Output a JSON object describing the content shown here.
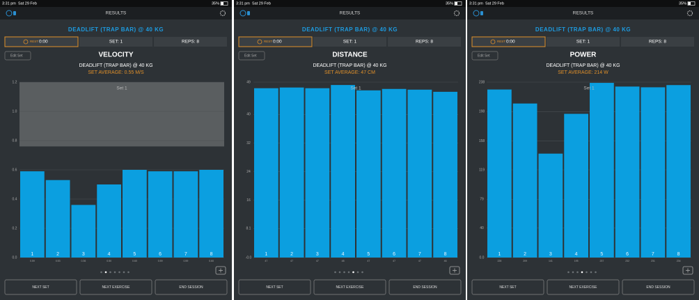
{
  "panels": [
    {
      "time": "3:31 pm",
      "date": "Sat 29 Feb",
      "battery": "35%",
      "nav_title": "RESULTS",
      "exercise": "DEADLIFT (TRAP BAR) @ 40 KG",
      "rest_label": "REST",
      "rest_time": "0:00",
      "set": "SET: 1",
      "reps": "REPS: 8",
      "edit": "Edit Set",
      "chart": {
        "type": "bar",
        "title": "VELOCITY",
        "subtitle": "DEADLIFT (TRAP BAR) @ 40 KG",
        "average": "SET AVERAGE: 0.55 M/S",
        "series_label": "Set 1",
        "categories": [
          "1",
          "2",
          "3",
          "4",
          "5",
          "6",
          "7",
          "8"
        ],
        "values": [
          0.59,
          0.53,
          0.36,
          0.5,
          0.6,
          0.59,
          0.59,
          0.6
        ],
        "value_labels": [
          "0.59",
          "0.53",
          "0.36",
          "0.50",
          "0.60",
          "0.59",
          "0.59",
          "0.60"
        ],
        "color": "#0b9fe0",
        "highlight_range": [
          0.76,
          1.2
        ],
        "ylim": [
          0,
          1.2
        ],
        "yticks": [
          {
            "value": 0,
            "label": "0.0"
          },
          0.2,
          0.4,
          0.6,
          0.8,
          {
            "value": 1,
            "label": "1.0"
          },
          1.2
        ]
      },
      "buttons": [
        "NEXT SET",
        "NEXT EXERCISE",
        "END SESSION"
      ]
    },
    {
      "time": "3:31 pm",
      "date": "Sat 29 Feb",
      "battery": "35%",
      "nav_title": "RESULTS",
      "exercise": "DEADLIFT (TRAP BAR) @ 40 KG",
      "rest_label": "REST",
      "rest_time": "0:00",
      "set": "SET: 1",
      "reps": "REPS: 8",
      "edit": "Edit Set",
      "chart": {
        "type": "bar",
        "title": "DISTANCE",
        "subtitle": "DEADLIFT (TRAP BAR) @ 40 KG",
        "average": "SET AVERAGE: 47 CM",
        "series_label": "Set 1",
        "categories": [
          "1",
          "2",
          "3",
          "4",
          "5",
          "6",
          "7",
          "8"
        ],
        "values": [
          47.3,
          47.5,
          47.3,
          48.2,
          46.7,
          47.1,
          46.9,
          46.3
        ],
        "value_labels": [
          "47",
          "47",
          "47",
          "48",
          "47",
          "47",
          "47",
          "46"
        ],
        "color": "#0b9fe0",
        "ylim": [
          0,
          49
        ],
        "yticks": [
          {
            "value": 0,
            "label": "-0.0"
          },
          8.1,
          16,
          24,
          32,
          40,
          49
        ]
      },
      "buttons": [
        "NEXT SET",
        "NEXT EXERCISE",
        "END SESSION"
      ]
    },
    {
      "time": "3:31 pm",
      "date": "Sat 29 Feb",
      "battery": "35%",
      "nav_title": "RESULTS",
      "exercise": "DEADLIFT (TRAP BAR) @ 40 KG",
      "rest_label": "REST",
      "rest_time": "0:00",
      "set": "SET: 1",
      "reps": "REPS: 8",
      "edit": "Edit Set",
      "chart": {
        "type": "bar",
        "title": "POWER",
        "subtitle": "DEADLIFT (TRAP BAR) @ 40 KG",
        "average": "SET AVERAGE: 214 W",
        "series_label": "Set 1",
        "categories": [
          "1",
          "2",
          "3",
          "4",
          "5",
          "6",
          "7",
          "8"
        ],
        "values": [
          228,
          209,
          141,
          195,
          237,
          232,
          231,
          234
        ],
        "value_labels": [
          "228",
          "209",
          "141",
          "195",
          "237",
          "232",
          "231",
          "234"
        ],
        "color": "#0b9fe0",
        "ylim": [
          0,
          238
        ],
        "yticks": [
          {
            "value": 0,
            "label": "0.0"
          },
          40,
          79,
          119,
          158,
          198,
          238
        ]
      },
      "buttons": [
        "NEXT SET",
        "NEXT EXERCISE",
        "END SESSION"
      ]
    }
  ]
}
